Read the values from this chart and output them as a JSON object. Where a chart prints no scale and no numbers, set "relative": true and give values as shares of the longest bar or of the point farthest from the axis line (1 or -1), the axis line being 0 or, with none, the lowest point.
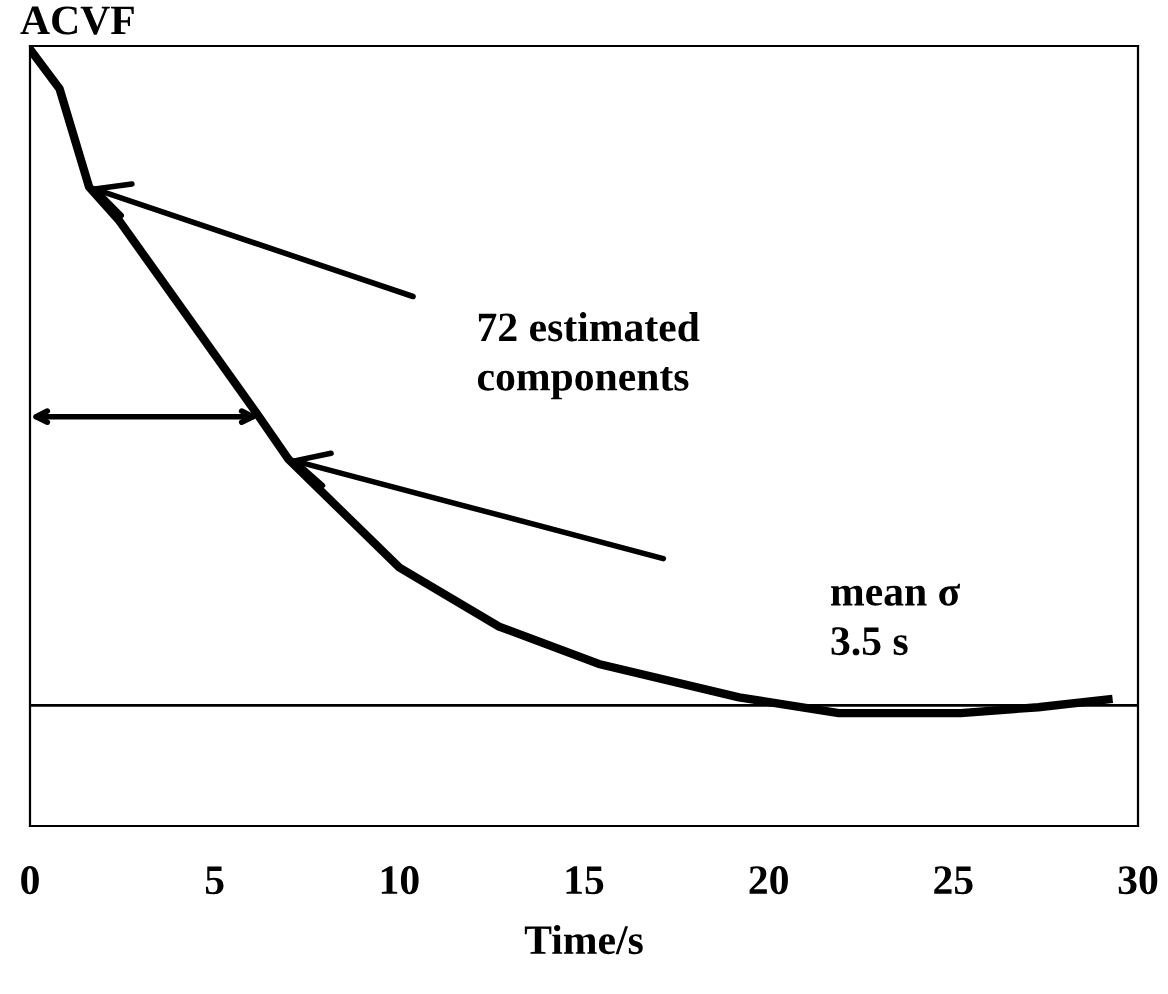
{
  "chart_data": {
    "type": "line",
    "relative": true,
    "xlabel": "Time/s",
    "ylabel": "ACVF",
    "x": [
      0,
      0.8,
      1.6,
      2.4,
      6.2,
      7,
      10,
      12.7,
      15.4,
      19.2,
      21.9,
      25.2,
      27.3,
      29.2
    ],
    "series": [
      {
        "color": "#000000",
        "values": [
          1.0,
          0.94,
          0.79,
          0.74,
          0.44,
          0.375,
          0.21,
          0.12,
          0.063,
          0.012,
          -0.012,
          -0.012,
          -0.003,
          0.009
        ]
      }
    ],
    "xlim": [
      0,
      30
    ],
    "xticks": [
      0,
      5,
      10,
      15,
      20,
      25,
      30
    ],
    "tick_labels": "x",
    "ref_lines": [
      {
        "axis": "y",
        "value": 0,
        "color": "#000000"
      }
    ],
    "annotations": [
      "72 estimated\ncomponents",
      "mean σ\n3.5 s"
    ],
    "grid": false,
    "legend": false,
    "marker": "none",
    "line_style": "solid"
  }
}
